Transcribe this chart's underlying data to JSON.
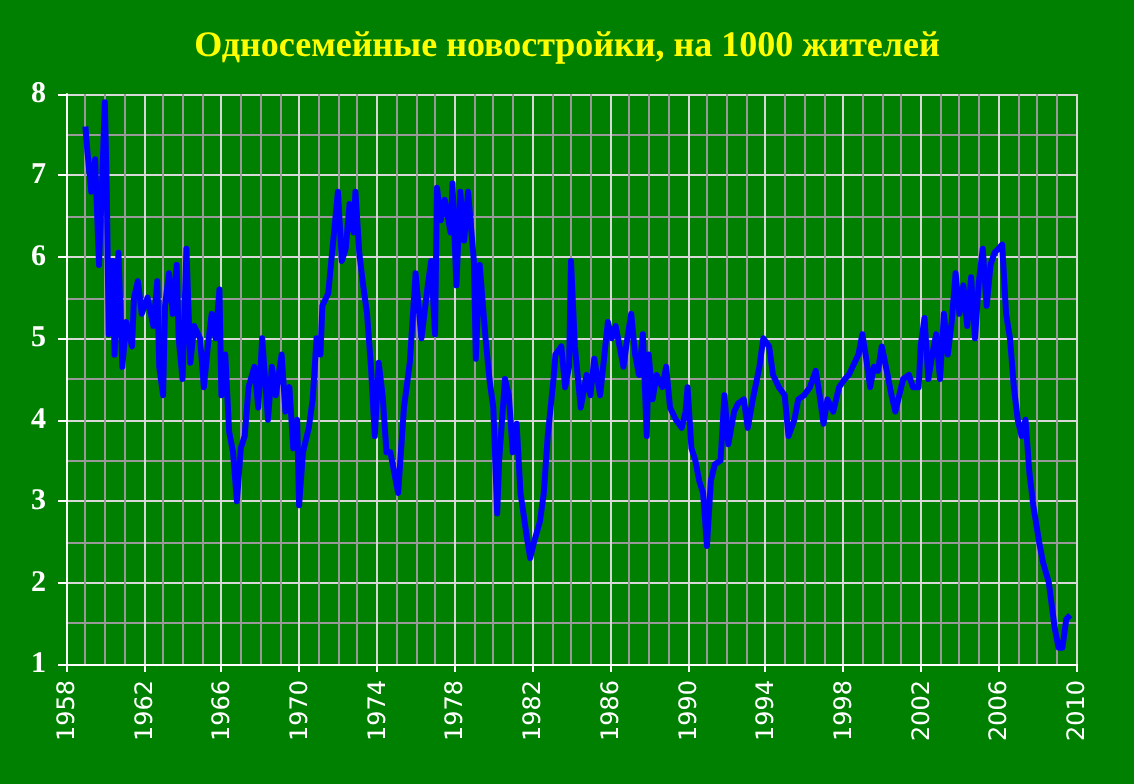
{
  "chart_data": {
    "type": "line",
    "title": "Односемейные новостройки, на 1000 жителей",
    "x": [
      1959.0,
      1959.1,
      1959.3,
      1959.5,
      1959.7,
      1959.9,
      1960.0,
      1960.1,
      1960.2,
      1960.4,
      1960.5,
      1960.7,
      1960.9,
      1961.1,
      1961.4,
      1961.5,
      1961.7,
      1961.9,
      1962.2,
      1962.5,
      1962.7,
      1962.8,
      1963.0,
      1963.1,
      1963.3,
      1963.5,
      1963.7,
      1963.8,
      1964.0,
      1964.2,
      1964.4,
      1964.6,
      1964.9,
      1965.1,
      1965.3,
      1965.5,
      1965.7,
      1965.9,
      1966.0,
      1966.2,
      1966.4,
      1966.6,
      1966.8,
      1967.0,
      1967.2,
      1967.4,
      1967.7,
      1967.9,
      1968.1,
      1968.4,
      1968.6,
      1968.8,
      1969.1,
      1969.3,
      1969.5,
      1969.7,
      1969.9,
      1970.0,
      1970.2,
      1970.5,
      1970.7,
      1970.9,
      1971.1,
      1971.2,
      1971.5,
      1971.7,
      1972.0,
      1972.2,
      1972.4,
      1972.6,
      1972.8,
      1972.9,
      1973.1,
      1973.3,
      1973.5,
      1973.7,
      1973.9,
      1974.1,
      1974.3,
      1974.5,
      1974.7,
      1975.1,
      1975.4,
      1975.7,
      1976.0,
      1976.3,
      1976.6,
      1976.8,
      1977.0,
      1977.1,
      1977.3,
      1977.5,
      1977.8,
      1977.9,
      1978.1,
      1978.3,
      1978.5,
      1978.7,
      1979.0,
      1979.1,
      1979.3,
      1979.6,
      1979.8,
      1980.0,
      1980.2,
      1980.3,
      1980.6,
      1980.8,
      1981.0,
      1981.2,
      1981.4,
      1981.7,
      1981.9,
      1982.1,
      1982.4,
      1982.6,
      1982.8,
      1983.1,
      1983.2,
      1983.5,
      1983.7,
      1983.9,
      1984.0,
      1984.2,
      1984.5,
      1984.8,
      1985.0,
      1985.2,
      1985.5,
      1985.7,
      1985.9,
      1986.1,
      1986.3,
      1986.5,
      1986.7,
      1986.9,
      1987.1,
      1987.3,
      1987.5,
      1987.7,
      1987.9,
      1988.0,
      1988.2,
      1988.4,
      1988.7,
      1988.9,
      1989.1,
      1989.4,
      1989.7,
      1989.9,
      1990.0,
      1990.2,
      1990.4,
      1990.6,
      1990.8,
      1991.0,
      1991.2,
      1991.4,
      1991.7,
      1991.9,
      1992.1,
      1992.4,
      1992.6,
      1992.9,
      1993.1,
      1993.4,
      1993.7,
      1993.9,
      1994.2,
      1994.4,
      1994.7,
      1995.0,
      1995.2,
      1995.5,
      1995.7,
      1996.0,
      1996.3,
      1996.6,
      1996.8,
      1997.0,
      1997.2,
      1997.5,
      1997.8,
      1998.1,
      1998.3,
      1998.5,
      1998.8,
      1999.0,
      1999.2,
      1999.4,
      1999.6,
      1999.8,
      2000.0,
      2000.3,
      2000.5,
      2000.7,
      2000.9,
      2001.1,
      2001.4,
      2001.6,
      2001.9,
      2002.0,
      2002.2,
      2002.4,
      2002.6,
      2002.8,
      2003.0,
      2003.2,
      2003.4,
      2003.6,
      2003.8,
      2004.0,
      2004.2,
      2004.4,
      2004.6,
      2004.8,
      2005.0,
      2005.2,
      2005.4,
      2005.6,
      2005.8,
      2006.0,
      2006.2,
      2006.4,
      2006.6,
      2006.8,
      2007.0,
      2007.2,
      2007.4,
      2007.6,
      2007.8,
      2008.1,
      2008.3,
      2008.6,
      2008.9,
      2009.1,
      2009.3,
      2009.5,
      2009.7
    ],
    "values": [
      7.6,
      7.3,
      6.8,
      7.2,
      5.9,
      7.2,
      7.9,
      6.8,
      5.05,
      5.95,
      4.8,
      6.05,
      4.65,
      5.2,
      4.9,
      5.5,
      5.7,
      5.3,
      5.5,
      5.15,
      5.7,
      4.65,
      4.3,
      5.4,
      5.8,
      5.3,
      5.9,
      5.0,
      4.5,
      6.1,
      4.7,
      5.15,
      5.0,
      4.4,
      4.9,
      5.3,
      5.0,
      5.6,
      4.3,
      4.8,
      3.85,
      3.6,
      3.0,
      3.65,
      3.8,
      4.4,
      4.65,
      4.15,
      5.0,
      4.0,
      4.65,
      4.3,
      4.8,
      4.1,
      4.4,
      3.65,
      4.0,
      2.95,
      3.6,
      3.9,
      4.25,
      5.0,
      4.8,
      5.4,
      5.55,
      6.05,
      6.8,
      5.95,
      6.1,
      6.65,
      6.3,
      6.8,
      6.05,
      5.65,
      5.3,
      4.65,
      3.8,
      4.7,
      4.3,
      3.6,
      3.6,
      3.1,
      4.15,
      4.7,
      5.8,
      5.0,
      5.6,
      5.95,
      5.05,
      6.85,
      6.45,
      6.7,
      6.3,
      6.9,
      5.65,
      6.8,
      6.2,
      6.8,
      5.95,
      4.75,
      5.9,
      5.0,
      4.5,
      4.15,
      2.85,
      3.5,
      4.5,
      4.3,
      3.6,
      3.95,
      3.1,
      2.6,
      2.3,
      2.5,
      2.75,
      3.1,
      3.8,
      4.5,
      4.8,
      4.9,
      4.4,
      4.65,
      5.95,
      4.9,
      4.15,
      4.55,
      4.3,
      4.75,
      4.3,
      4.75,
      5.2,
      5.0,
      5.15,
      4.9,
      4.65,
      5.0,
      5.3,
      4.8,
      4.55,
      5.05,
      3.8,
      4.8,
      4.25,
      4.55,
      4.4,
      4.65,
      4.15,
      4.0,
      3.9,
      4.1,
      4.4,
      3.65,
      3.5,
      3.25,
      3.1,
      2.45,
      3.25,
      3.45,
      3.5,
      4.3,
      3.7,
      4.1,
      4.2,
      4.25,
      3.9,
      4.3,
      4.65,
      5.0,
      4.9,
      4.55,
      4.4,
      4.3,
      3.8,
      4.0,
      4.25,
      4.3,
      4.4,
      4.6,
      4.3,
      3.95,
      4.25,
      4.1,
      4.4,
      4.5,
      4.55,
      4.65,
      4.8,
      5.05,
      4.75,
      4.4,
      4.65,
      4.6,
      4.9,
      4.55,
      4.3,
      4.1,
      4.3,
      4.5,
      4.55,
      4.4,
      4.4,
      4.9,
      5.25,
      4.5,
      4.8,
      5.05,
      4.5,
      5.3,
      4.8,
      5.2,
      5.8,
      5.3,
      5.65,
      5.15,
      5.75,
      5.0,
      5.7,
      6.1,
      5.4,
      5.9,
      6.05,
      6.1,
      6.15,
      5.3,
      5.0,
      4.4,
      4.0,
      3.8,
      4.0,
      3.35,
      2.95,
      2.5,
      2.25,
      2.0,
      1.45,
      1.2,
      1.2,
      1.55,
      1.6
    ],
    "color": "#0000ff",
    "xlim": [
      1958,
      2010
    ],
    "xticks": [
      1958,
      1962,
      1966,
      1970,
      1974,
      1978,
      1982,
      1986,
      1990,
      1994,
      1998,
      2002,
      2006,
      2010
    ],
    "ylim": [
      1,
      8
    ],
    "yticks": [
      1,
      2,
      3,
      4,
      5,
      6,
      7,
      8
    ],
    "grid": true,
    "line_style": "solid"
  }
}
